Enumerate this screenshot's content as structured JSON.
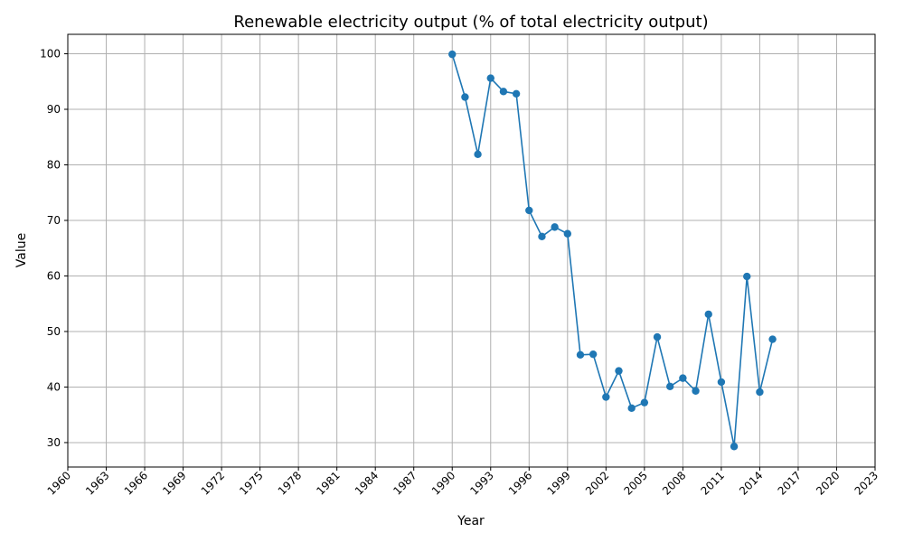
{
  "chart_data": {
    "type": "line",
    "title": "Renewable electricity output (% of total electricity output)",
    "xlabel": "Year",
    "ylabel": "Value",
    "xlim": [
      1960,
      2023
    ],
    "ylim": [
      25.6,
      103.5
    ],
    "grid": true,
    "marker": "circle",
    "line_color": "#1f77b4",
    "x_ticks": [
      1960,
      1963,
      1966,
      1969,
      1972,
      1975,
      1978,
      1981,
      1984,
      1987,
      1990,
      1993,
      1996,
      1999,
      2002,
      2005,
      2008,
      2011,
      2014,
      2017,
      2020,
      2023
    ],
    "y_ticks": [
      30,
      40,
      50,
      60,
      70,
      80,
      90,
      100
    ],
    "x": [
      1990,
      1991,
      1992,
      1993,
      1994,
      1995,
      1996,
      1997,
      1998,
      1999,
      2000,
      2001,
      2002,
      2003,
      2004,
      2005,
      2006,
      2007,
      2008,
      2009,
      2010,
      2011,
      2012,
      2013,
      2014,
      2015
    ],
    "values": [
      99.9,
      92.2,
      81.9,
      95.6,
      93.2,
      92.8,
      71.8,
      67.1,
      68.8,
      67.6,
      45.8,
      45.9,
      38.2,
      42.9,
      36.2,
      37.2,
      49.0,
      40.1,
      41.6,
      39.3,
      53.1,
      40.9,
      29.3,
      59.9,
      39.1,
      48.6
    ]
  }
}
